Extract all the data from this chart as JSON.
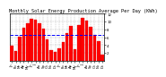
{
  "title": "Monthly Solar Energy Production Average Per Day (KWh)",
  "values": [
    3.8,
    2.5,
    6.2,
    8.4,
    9.5,
    10.8,
    10.5,
    9.6,
    8.2,
    5.5,
    2.8,
    2.2,
    3.2,
    4.8,
    7.0,
    8.9,
    3.0,
    9.1,
    11.0,
    10.3,
    8.6,
    6.5,
    5.0,
    1.5
  ],
  "bar_color": "#FF0000",
  "bar_edge_color": "#CC0000",
  "avg_line_color": "#0000FF",
  "avg_value": 6.5,
  "ylim": [
    0,
    12
  ],
  "yticks": [
    2,
    4,
    6,
    8,
    10,
    12
  ],
  "ytick_labels": [
    "2",
    "4",
    "6",
    "8",
    "10",
    "12"
  ],
  "background_color": "#FFFFFF",
  "grid_color": "#999999",
  "title_fontsize": 3.8,
  "tick_fontsize": 2.8,
  "bar_width": 0.8
}
